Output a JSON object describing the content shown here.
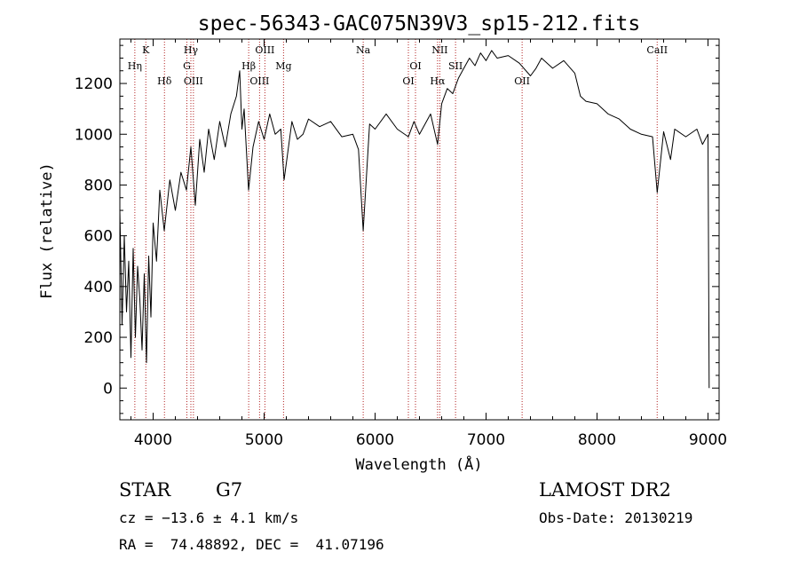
{
  "chart_data": {
    "type": "line",
    "title": "spec-56343-GAC075N39V3_sp15-212.fits",
    "xlabel": "Wavelength (Å)",
    "ylabel": "Flux (relative)",
    "xlim": [
      3700,
      9100
    ],
    "ylim": [
      -125,
      1375
    ],
    "x_ticks": [
      4000,
      5000,
      6000,
      7000,
      8000,
      9000
    ],
    "x_tick_labels": [
      "4000",
      "5000",
      "6000",
      "7000",
      "8000",
      "9000"
    ],
    "y_ticks": [
      0,
      200,
      400,
      600,
      800,
      1000,
      1200
    ],
    "y_tick_labels": [
      "0",
      "200",
      "400",
      "600",
      "800",
      "1000",
      "1200"
    ],
    "series": [
      {
        "color": "#000000",
        "x": [
          3700,
          3720,
          3740,
          3760,
          3780,
          3800,
          3820,
          3840,
          3860,
          3880,
          3900,
          3920,
          3940,
          3960,
          3980,
          4000,
          4030,
          4060,
          4100,
          4150,
          4200,
          4250,
          4300,
          4340,
          4380,
          4420,
          4460,
          4500,
          4550,
          4600,
          4650,
          4700,
          4750,
          4780,
          4800,
          4820,
          4860,
          4900,
          4950,
          5000,
          5050,
          5100,
          5150,
          5180,
          5250,
          5300,
          5350,
          5400,
          5500,
          5600,
          5700,
          5800,
          5850,
          5893,
          5950,
          6000,
          6100,
          6200,
          6300,
          6350,
          6400,
          6450,
          6500,
          6563,
          6600,
          6650,
          6700,
          6750,
          6800,
          6850,
          6900,
          6950,
          7000,
          7050,
          7100,
          7200,
          7300,
          7400,
          7450,
          7500,
          7600,
          7700,
          7800,
          7850,
          7900,
          8000,
          8100,
          8200,
          8300,
          8400,
          8500,
          8542,
          8600,
          8662,
          8700,
          8800,
          8900,
          8950,
          9000,
          9010
        ],
        "y": [
          700,
          250,
          600,
          300,
          500,
          120,
          550,
          200,
          480,
          350,
          150,
          450,
          100,
          520,
          280,
          650,
          500,
          780,
          620,
          820,
          700,
          850,
          780,
          950,
          720,
          980,
          850,
          1020,
          900,
          1050,
          950,
          1080,
          1150,
          1250,
          1020,
          1100,
          780,
          950,
          1050,
          980,
          1080,
          1000,
          1020,
          820,
          1050,
          980,
          1000,
          1060,
          1030,
          1050,
          990,
          1000,
          940,
          620,
          1040,
          1020,
          1080,
          1020,
          990,
          1050,
          1000,
          1040,
          1080,
          960,
          1120,
          1180,
          1160,
          1220,
          1260,
          1300,
          1270,
          1320,
          1290,
          1330,
          1300,
          1310,
          1280,
          1230,
          1260,
          1300,
          1260,
          1290,
          1240,
          1150,
          1130,
          1120,
          1080,
          1060,
          1020,
          1000,
          990,
          770,
          1010,
          900,
          1020,
          990,
          1020,
          960,
          1000,
          0
        ]
      }
    ],
    "line_markers": [
      {
        "label": "Hη",
        "x": 3835,
        "row": 1
      },
      {
        "label": "K",
        "x": 3934,
        "row": 0
      },
      {
        "label": "Hδ",
        "x": 4102,
        "row": 2
      },
      {
        "label": "Hγ",
        "x": 4340,
        "row": 0
      },
      {
        "label": "G",
        "x": 4304,
        "row": 1
      },
      {
        "label": "OIII",
        "x": 4363,
        "row": 2
      },
      {
        "label": "OIII",
        "x": 5007,
        "row": 0
      },
      {
        "label": "Hβ",
        "x": 4861,
        "row": 1
      },
      {
        "label": "OIII",
        "x": 4959,
        "row": 2
      },
      {
        "label": "Mg",
        "x": 5175,
        "row": 1
      },
      {
        "label": "Na",
        "x": 5893,
        "row": 0
      },
      {
        "label": "OI",
        "x": 6364,
        "row": 1
      },
      {
        "label": "OI",
        "x": 6300,
        "row": 2
      },
      {
        "label": "NII",
        "x": 6583,
        "row": 0
      },
      {
        "label": "SII",
        "x": 6725,
        "row": 1
      },
      {
        "label": "Hα",
        "x": 6563,
        "row": 2
      },
      {
        "label": "OII",
        "x": 7325,
        "row": 2
      },
      {
        "label": "CaII",
        "x": 8542,
        "row": 0
      }
    ],
    "marker_color": "#b22222",
    "grid": false,
    "legend": "none"
  },
  "info": {
    "class_label": "STAR",
    "subclass_label": "G7",
    "redshift_text": "cz = −13.6 ± 4.1 km/s",
    "coords_text": "RA =  74.48892, DEC =  41.07196",
    "survey_label": "LAMOST DR2",
    "obs_date_text": "Obs-Date: 20130219"
  }
}
